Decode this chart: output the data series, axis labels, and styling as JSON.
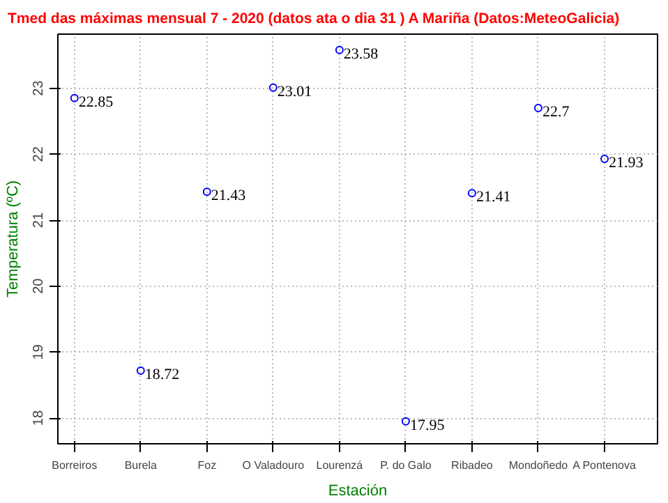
{
  "chart_data": {
    "type": "scatter",
    "title": "Tmed das máximas mensual 7 - 2020 (datos ata o dia 31 ) A Mariña (Datos:MeteoGalicia)",
    "xlabel": "Estación",
    "ylabel": "Temperatura (ºC)",
    "categories": [
      "Borreiros",
      "Burela",
      "Foz",
      "O Valadouro",
      "Lourenzá",
      "P. do Galo",
      "Ribadeo",
      "Mondoñedo",
      "A Pontenova"
    ],
    "series": [
      {
        "color": "#0000ff",
        "values": [
          22.85,
          18.72,
          21.43,
          23.01,
          23.58,
          17.95,
          21.41,
          22.7,
          21.93
        ]
      }
    ],
    "ylim": [
      17.61,
      23.82
    ],
    "yticks": [
      18,
      19,
      20,
      21,
      22,
      23
    ],
    "grid": true,
    "marker": "circle",
    "data_labels": true
  }
}
